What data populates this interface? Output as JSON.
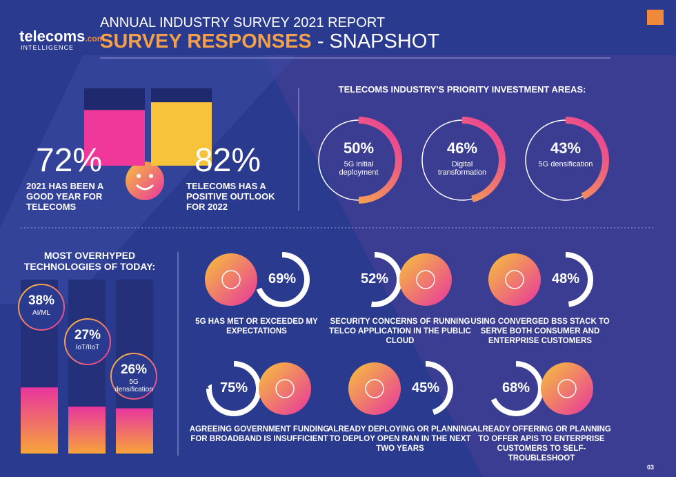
{
  "header": {
    "brand": "telecoms",
    "brand_suffix": ".com",
    "brand_sub": "INTELLIGENCE",
    "kicker": "ANNUAL INDUSTRY SURVEY 2021 REPORT",
    "title": "SURVEY RESPONSES",
    "title_suffix": "- SNAPSHOT",
    "page": "03"
  },
  "headline_stats": [
    {
      "value": 72,
      "label": "72%",
      "caption": "2021 HAS BEEN A GOOD YEAR FOR TELECOMS",
      "color": "#f0389a"
    },
    {
      "value": 82,
      "label": "82%",
      "caption": "TELECOMS HAS A POSITIVE OUTLOOK FOR 2022",
      "color": "#f7c33a"
    }
  ],
  "investment": {
    "heading": "TELECOMS INDUSTRY'S PRIORITY INVESTMENT AREAS:",
    "items": [
      {
        "value": 50,
        "label": "50%",
        "caption": "5G initial deployment"
      },
      {
        "value": 46,
        "label": "46%",
        "caption": "Digital transformation"
      },
      {
        "value": 43,
        "label": "43%",
        "caption": "5G densification"
      }
    ]
  },
  "overhyped": {
    "heading": "MOST OVERHYPED TECHNOLOGIES OF TODAY:",
    "items": [
      {
        "value": 38,
        "label": "38%",
        "caption": "AI/ML"
      },
      {
        "value": 27,
        "label": "27%",
        "caption": "IoT/IIoT"
      },
      {
        "value": 26,
        "label": "26%",
        "caption": "5G densification"
      }
    ]
  },
  "findings": [
    {
      "value": 69,
      "label": "69%",
      "caption": "5G HAS MET OR EXCEEDED MY EXPECTATIONS"
    },
    {
      "value": 52,
      "label": "52%",
      "caption": "SECURITY CONCERNS OF RUNNING TELCO APPLICATION IN THE PUBLIC CLOUD"
    },
    {
      "value": 48,
      "label": "48%",
      "caption": "USING CONVERGED BSS STACK TO SERVE BOTH CONSUMER AND ENTERPRISE CUSTOMERS"
    },
    {
      "value": 75,
      "label": "75%",
      "caption": "AGREEING GOVERNMENT FUNDING FOR BROADBAND IS INSUFFICIENT"
    },
    {
      "value": 45,
      "label": "45%",
      "caption": "ALREADY DEPLOYING OR PLANNING TO DEPLOY OPEN RAN IN THE NEXT TWO YEARS"
    },
    {
      "value": 68,
      "label": "68%",
      "caption": "ALREADY OFFERING OR PLANNING TO OFFER APIS TO ENTERPRISE CUSTOMERS TO SELF-TROUBLESHOOT"
    }
  ]
}
